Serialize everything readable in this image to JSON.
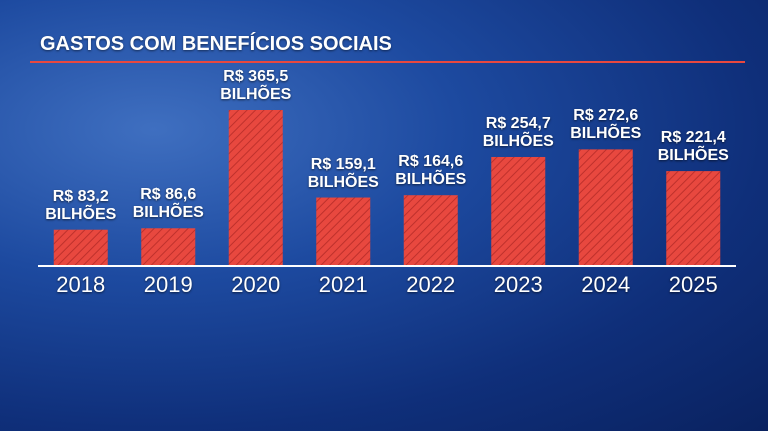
{
  "chart_data": {
    "type": "bar",
    "title": "GASTOS COM BENEFÍCIOS SOCIAIS",
    "categories": [
      "2018",
      "2019",
      "2020",
      "2021",
      "2022",
      "2023",
      "2024",
      "2025"
    ],
    "values": [
      83.2,
      86.6,
      365.5,
      159.1,
      164.6,
      254.7,
      272.6,
      221.4
    ],
    "value_labels": [
      "R$ 83,2 BILHÕES",
      "R$ 86,6 BILHÕES",
      "R$ 365,5 BILHÕES",
      "R$ 159,1 BILHÕES",
      "R$ 164,6 BILHÕES",
      "R$ 254,7 BILHÕES",
      "R$ 272,6 BILHÕES",
      "R$ 221,4 BILHÕES"
    ],
    "color": "#e8483f"
  }
}
